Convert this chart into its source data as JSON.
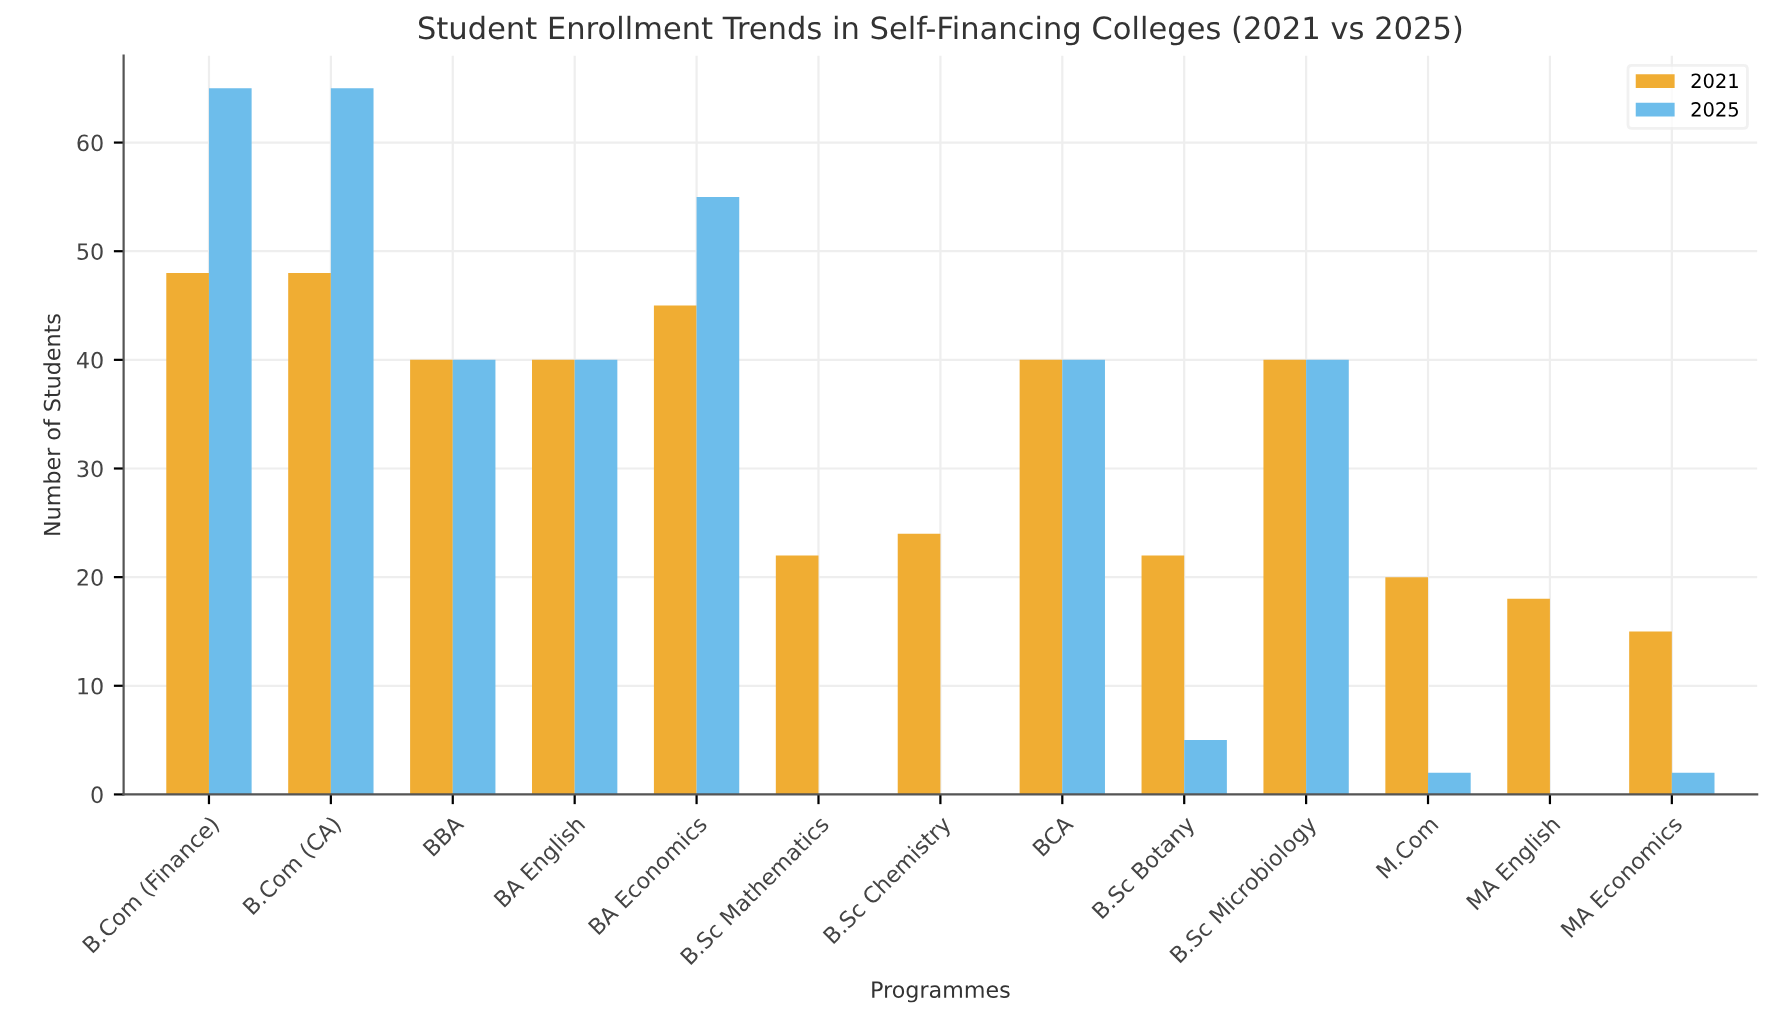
{
  "chart_data": {
    "type": "bar",
    "title": "Student Enrollment Trends in Self-Financing Colleges (2021 vs 2025)",
    "xlabel": "Programmes",
    "ylabel": "Number of Students",
    "categories": [
      "B.Com (Finance)",
      "B.Com (CA)",
      "BBA",
      "BA English",
      "BA Economics",
      "B.Sc Mathematics",
      "B.Sc Chemistry",
      "BCA",
      "B.Sc Botany",
      "B.Sc Microbiology",
      "M.Com",
      "MA English",
      "MA Economics"
    ],
    "series": [
      {
        "name": "2021",
        "color": "#f0ad33",
        "values": [
          48,
          48,
          40,
          40,
          45,
          22,
          24,
          40,
          22,
          40,
          20,
          18,
          15
        ]
      },
      {
        "name": "2025",
        "color": "#6dbdeb",
        "values": [
          65,
          65,
          40,
          40,
          55,
          null,
          null,
          40,
          5,
          40,
          2,
          null,
          2
        ]
      }
    ],
    "ylim": [
      0,
      68
    ],
    "yticks": [
      0,
      10,
      20,
      30,
      40,
      50,
      60
    ],
    "grid": true,
    "legend": "top right"
  }
}
